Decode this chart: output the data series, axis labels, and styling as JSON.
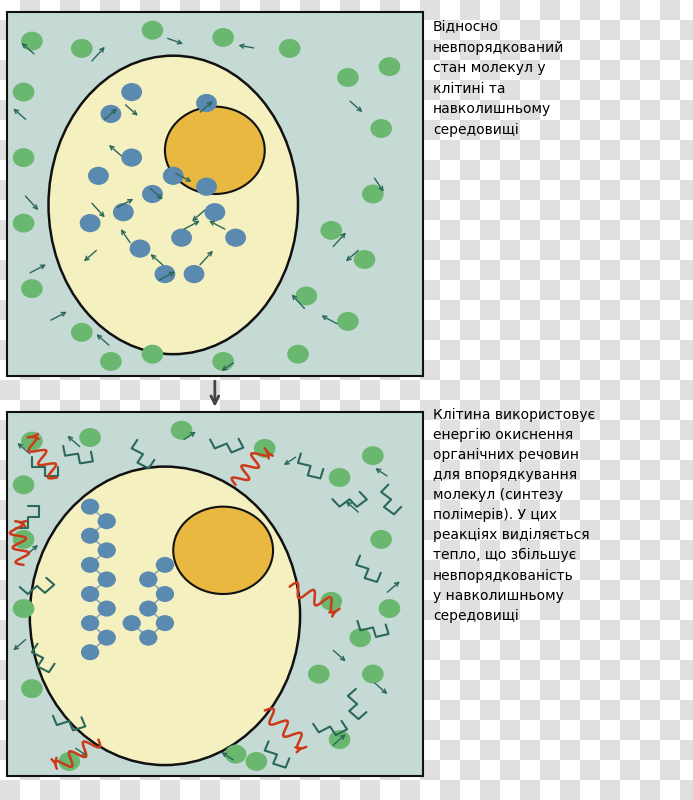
{
  "bg_color": "#c5d9d5",
  "cell_color": "#f5f0c0",
  "nucleus_color": "#e8b840",
  "border_color": "#111111",
  "dot_color_green": "#6ab870",
  "dot_color_blue": "#5a8ab0",
  "arrow_color": "#2a6858",
  "arrow_color2": "#cc3a1a",
  "zigzag_color": "#2a6858",
  "text1": "Відносно\nневпорядкований\nстан молекул у\nклітині та\nнавколишньому\nсередовищі",
  "text2": "Клітина використовує\nенергію окиснення\nорганічних речовин\nдля впорядкування\nмолекул (синтезу\nполімерів). У цих\nреакціях виділяється\nтепло, що збільшує\nневпорядкованість\nу навколишньому\nсередовищі",
  "font_size": 10
}
